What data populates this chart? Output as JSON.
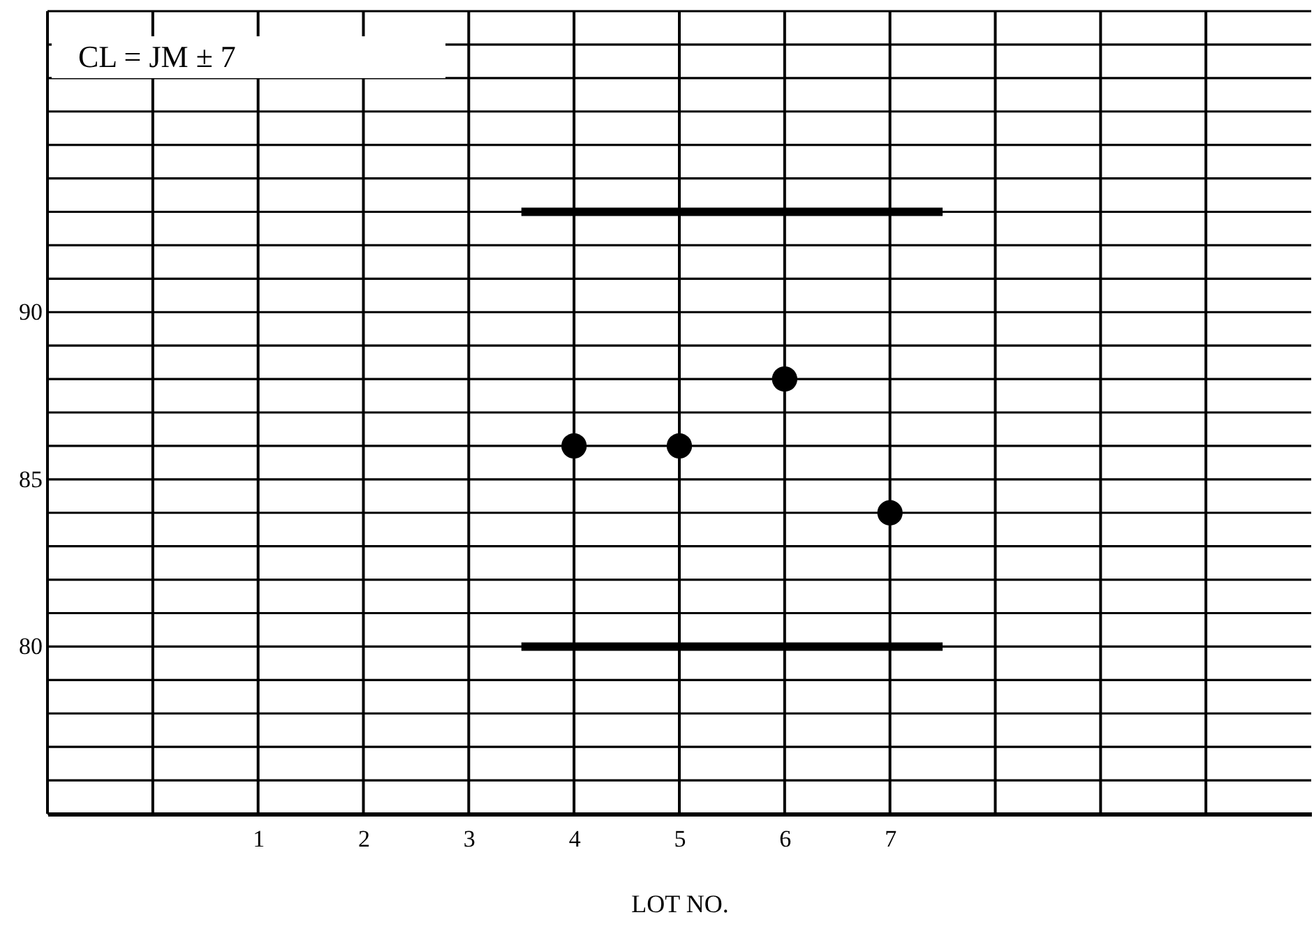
{
  "chart_data": {
    "type": "scatter",
    "xlabel": "LOT NO.",
    "annotations": [
      "CL  = JM ± 7"
    ],
    "xlim": [
      -1,
      11
    ],
    "xticks": [
      {
        "value": -1,
        "label": null
      },
      {
        "value": 0,
        "label": null
      },
      1,
      2,
      3,
      4,
      5,
      6,
      7,
      {
        "value": 8,
        "label": null
      },
      {
        "value": 9,
        "label": null
      },
      {
        "value": 10,
        "label": null
      }
    ],
    "ylim": [
      75,
      99
    ],
    "yticks": [
      {
        "value": 75,
        "label": null
      },
      {
        "value": 76,
        "label": null
      },
      {
        "value": 77,
        "label": null
      },
      {
        "value": 78,
        "label": null
      },
      {
        "value": 79,
        "label": null
      },
      80,
      {
        "value": 81,
        "label": null
      },
      {
        "value": 82,
        "label": null
      },
      {
        "value": 83,
        "label": null
      },
      {
        "value": 84,
        "label": null
      },
      85,
      {
        "value": 86,
        "label": null
      },
      {
        "value": 87,
        "label": null
      },
      {
        "value": 88,
        "label": null
      },
      {
        "value": 89,
        "label": null
      },
      90,
      {
        "value": 91,
        "label": null
      },
      {
        "value": 92,
        "label": null
      },
      {
        "value": 93,
        "label": null
      },
      {
        "value": 94,
        "label": null
      },
      {
        "value": 95,
        "label": null
      },
      {
        "value": 96,
        "label": null
      },
      {
        "value": 97,
        "label": null
      },
      {
        "value": 98,
        "label": null
      },
      {
        "value": 99,
        "label": null
      }
    ],
    "grid": true,
    "marker": "circle",
    "series": [
      {
        "type": "scatter",
        "color": "#000000",
        "x": [
          4,
          5,
          6,
          7
        ],
        "values": [
          86,
          86,
          88,
          84
        ]
      },
      {
        "type": "line",
        "color": "#000000",
        "line_style": "solid",
        "marker": "none",
        "x": [
          3.5,
          7.5
        ],
        "values": [
          93,
          93
        ]
      },
      {
        "type": "line",
        "color": "#000000",
        "line_style": "solid",
        "marker": "none",
        "x": [
          3.5,
          7.5
        ],
        "values": [
          80,
          80
        ]
      }
    ]
  }
}
